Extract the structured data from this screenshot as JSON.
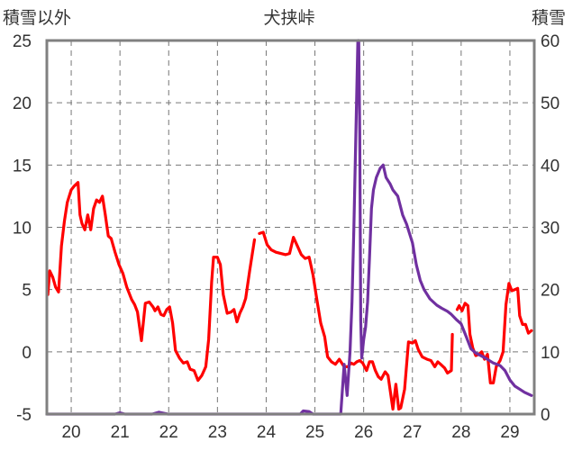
{
  "chart_data": {
    "type": "line",
    "title": "犬挟峠",
    "left_axis_label": "積雪以外",
    "right_axis_label": "積雪",
    "x_ticks": [
      "20",
      "21",
      "22",
      "23",
      "24",
      "25",
      "26",
      "27",
      "28",
      "29"
    ],
    "xlim": [
      19.5,
      29.5
    ],
    "ylim_left": [
      -5,
      25
    ],
    "ylim_right": [
      0,
      60
    ],
    "left_ticks": [
      "25",
      "20",
      "15",
      "10",
      "5",
      "0",
      "-5"
    ],
    "right_ticks": [
      "60",
      "50",
      "40",
      "30",
      "20",
      "10",
      "0"
    ],
    "left_tick_values": [
      25,
      20,
      15,
      10,
      5,
      0,
      -5
    ],
    "right_tick_values": [
      60,
      50,
      40,
      30,
      20,
      10,
      0
    ],
    "grid": "dashed vertical and horizontal",
    "series": [
      {
        "axis": "left",
        "color": "#ff0000",
        "points": [
          [
            19.52,
            4.6
          ],
          [
            19.56,
            6.5
          ],
          [
            19.62,
            6.0
          ],
          [
            19.68,
            5.2
          ],
          [
            19.74,
            4.8
          ],
          [
            19.8,
            8.5
          ],
          [
            19.86,
            10.5
          ],
          [
            19.92,
            12.0
          ],
          [
            20.0,
            13.0
          ],
          [
            20.06,
            13.3
          ],
          [
            20.14,
            13.6
          ],
          [
            20.18,
            11.0
          ],
          [
            20.22,
            10.3
          ],
          [
            20.28,
            9.8
          ],
          [
            20.34,
            11.0
          ],
          [
            20.4,
            9.8
          ],
          [
            20.46,
            11.5
          ],
          [
            20.52,
            12.2
          ],
          [
            20.58,
            12.0
          ],
          [
            20.64,
            12.5
          ],
          [
            20.7,
            11.0
          ],
          [
            20.76,
            9.3
          ],
          [
            20.82,
            9.1
          ],
          [
            20.9,
            8.0
          ],
          [
            20.98,
            7.0
          ],
          [
            21.06,
            6.3
          ],
          [
            21.14,
            5.2
          ],
          [
            21.24,
            4.2
          ],
          [
            21.3,
            3.8
          ],
          [
            21.36,
            3.2
          ],
          [
            21.44,
            0.9
          ],
          [
            21.52,
            3.9
          ],
          [
            21.6,
            4.0
          ],
          [
            21.68,
            3.6
          ],
          [
            21.72,
            3.3
          ],
          [
            21.78,
            3.6
          ],
          [
            21.84,
            3.0
          ],
          [
            21.9,
            2.9
          ],
          [
            21.96,
            3.4
          ],
          [
            22.02,
            3.6
          ],
          [
            22.08,
            2.3
          ],
          [
            22.14,
            0.1
          ],
          [
            22.22,
            -0.5
          ],
          [
            22.3,
            -0.9
          ],
          [
            22.38,
            -0.8
          ],
          [
            22.44,
            -1.4
          ],
          [
            22.52,
            -1.5
          ],
          [
            22.6,
            -2.3
          ],
          [
            22.68,
            -1.9
          ],
          [
            22.76,
            -1.2
          ],
          [
            22.82,
            1.0
          ],
          [
            22.88,
            5.6
          ],
          [
            22.92,
            7.6
          ],
          [
            23.0,
            7.6
          ],
          [
            23.06,
            7.0
          ],
          [
            23.12,
            4.6
          ],
          [
            23.2,
            3.1
          ],
          [
            23.28,
            3.2
          ],
          [
            23.34,
            3.4
          ],
          [
            23.4,
            2.4
          ],
          [
            23.46,
            3.1
          ],
          [
            23.52,
            3.6
          ],
          [
            23.58,
            4.3
          ],
          [
            23.66,
            6.5
          ],
          [
            23.72,
            8.0
          ],
          [
            23.76,
            9.0
          ],
          [
            23.8,
            null
          ],
          [
            23.86,
            9.5
          ],
          [
            23.94,
            9.6
          ],
          [
            24.02,
            8.6
          ],
          [
            24.1,
            8.2
          ],
          [
            24.2,
            8.0
          ],
          [
            24.3,
            7.9
          ],
          [
            24.4,
            7.8
          ],
          [
            24.48,
            7.9
          ],
          [
            24.56,
            9.2
          ],
          [
            24.64,
            8.5
          ],
          [
            24.72,
            7.8
          ],
          [
            24.8,
            7.5
          ],
          [
            24.88,
            7.6
          ],
          [
            24.96,
            6.2
          ],
          [
            25.04,
            4.2
          ],
          [
            25.12,
            2.3
          ],
          [
            25.2,
            1.2
          ],
          [
            25.26,
            -0.4
          ],
          [
            25.34,
            -0.8
          ],
          [
            25.42,
            -1.0
          ],
          [
            25.5,
            -0.6
          ],
          [
            25.6,
            -1.2
          ],
          [
            25.68,
            -1.2
          ],
          [
            25.74,
            -0.9
          ],
          [
            25.8,
            -1.0
          ],
          [
            25.86,
            -0.8
          ],
          [
            25.92,
            -0.7
          ],
          [
            25.98,
            -0.9
          ],
          [
            26.06,
            -1.5
          ],
          [
            26.12,
            -0.8
          ],
          [
            26.18,
            -0.8
          ],
          [
            26.24,
            -1.5
          ],
          [
            26.3,
            -2.0
          ],
          [
            26.36,
            -2.2
          ],
          [
            26.44,
            -1.6
          ],
          [
            26.5,
            -1.9
          ],
          [
            26.56,
            -3.5
          ],
          [
            26.6,
            -4.6
          ],
          [
            26.66,
            -2.6
          ],
          [
            26.72,
            -4.6
          ],
          [
            26.76,
            -4.5
          ],
          [
            26.84,
            -3.0
          ],
          [
            26.92,
            0.8
          ],
          [
            27.0,
            0.7
          ],
          [
            27.06,
            0.9
          ],
          [
            27.12,
            0.2
          ],
          [
            27.2,
            -0.4
          ],
          [
            27.3,
            -0.6
          ],
          [
            27.38,
            -0.7
          ],
          [
            27.46,
            -1.2
          ],
          [
            27.52,
            -0.8
          ],
          [
            27.58,
            -1.0
          ],
          [
            27.66,
            -1.3
          ],
          [
            27.72,
            -1.7
          ],
          [
            27.8,
            -1.5
          ],
          [
            27.82,
            1.4
          ],
          [
            27.86,
            null
          ],
          [
            27.92,
            3.4
          ],
          [
            27.96,
            3.7
          ],
          [
            28.02,
            3.3
          ],
          [
            28.08,
            3.9
          ],
          [
            28.14,
            3.7
          ],
          [
            28.18,
            1.4
          ],
          [
            28.24,
            0.3
          ],
          [
            28.3,
            -0.3
          ],
          [
            28.36,
            -0.2
          ],
          [
            28.42,
            0.0
          ],
          [
            28.48,
            -0.6
          ],
          [
            28.54,
            -0.2
          ],
          [
            28.6,
            -2.5
          ],
          [
            28.66,
            -2.5
          ],
          [
            28.72,
            -1.2
          ],
          [
            28.8,
            -0.7
          ],
          [
            28.86,
            0.0
          ],
          [
            28.92,
            3.8
          ],
          [
            28.98,
            5.5
          ],
          [
            29.04,
            4.9
          ],
          [
            29.1,
            5.0
          ],
          [
            29.16,
            5.1
          ],
          [
            29.2,
            2.9
          ],
          [
            29.26,
            2.2
          ],
          [
            29.32,
            2.2
          ],
          [
            29.38,
            1.5
          ],
          [
            29.44,
            1.7
          ]
        ]
      },
      {
        "axis": "right",
        "color": "#7030a0",
        "points": [
          [
            19.5,
            0.0
          ],
          [
            20.9,
            0.0
          ],
          [
            21.0,
            0.2
          ],
          [
            21.1,
            0.0
          ],
          [
            21.66,
            0.0
          ],
          [
            21.8,
            0.3
          ],
          [
            21.98,
            0.0
          ],
          [
            24.7,
            0.0
          ],
          [
            24.76,
            0.5
          ],
          [
            24.88,
            0.4
          ],
          [
            24.96,
            0.0
          ],
          [
            25.53,
            0.0
          ],
          [
            25.6,
            8.0
          ],
          [
            25.66,
            3.0
          ],
          [
            25.72,
            10.0
          ],
          [
            25.76,
            18.0
          ],
          [
            25.8,
            30.0
          ],
          [
            25.84,
            45.0
          ],
          [
            25.88,
            60.0
          ],
          [
            25.9,
            60.0
          ],
          [
            25.92,
            45.0
          ],
          [
            25.94,
            15.0
          ],
          [
            25.96,
            9.0
          ],
          [
            26.0,
            12.0
          ],
          [
            26.04,
            14.0
          ],
          [
            26.08,
            18.0
          ],
          [
            26.12,
            25.0
          ],
          [
            26.16,
            33.0
          ],
          [
            26.2,
            36.0
          ],
          [
            26.26,
            38.0
          ],
          [
            26.34,
            39.5
          ],
          [
            26.4,
            40.0
          ],
          [
            26.46,
            38.0
          ],
          [
            26.54,
            37.0
          ],
          [
            26.6,
            36.0
          ],
          [
            26.7,
            35.0
          ],
          [
            26.8,
            32.0
          ],
          [
            26.88,
            30.5
          ],
          [
            27.0,
            27.5
          ],
          [
            27.08,
            24.0
          ],
          [
            27.16,
            21.5
          ],
          [
            27.24,
            20.0
          ],
          [
            27.36,
            18.5
          ],
          [
            27.5,
            17.5
          ],
          [
            27.6,
            17.0
          ],
          [
            27.72,
            16.5
          ],
          [
            27.8,
            16.0
          ],
          [
            27.9,
            15.2
          ],
          [
            28.0,
            14.5
          ],
          [
            28.1,
            12.5
          ],
          [
            28.2,
            10.5
          ],
          [
            28.3,
            9.8
          ],
          [
            28.5,
            9.0
          ],
          [
            28.66,
            8.2
          ],
          [
            28.8,
            7.8
          ],
          [
            28.9,
            7.0
          ],
          [
            29.0,
            5.5
          ],
          [
            29.1,
            4.5
          ],
          [
            29.2,
            4.0
          ],
          [
            29.3,
            3.5
          ],
          [
            29.44,
            3.0
          ]
        ]
      }
    ]
  }
}
